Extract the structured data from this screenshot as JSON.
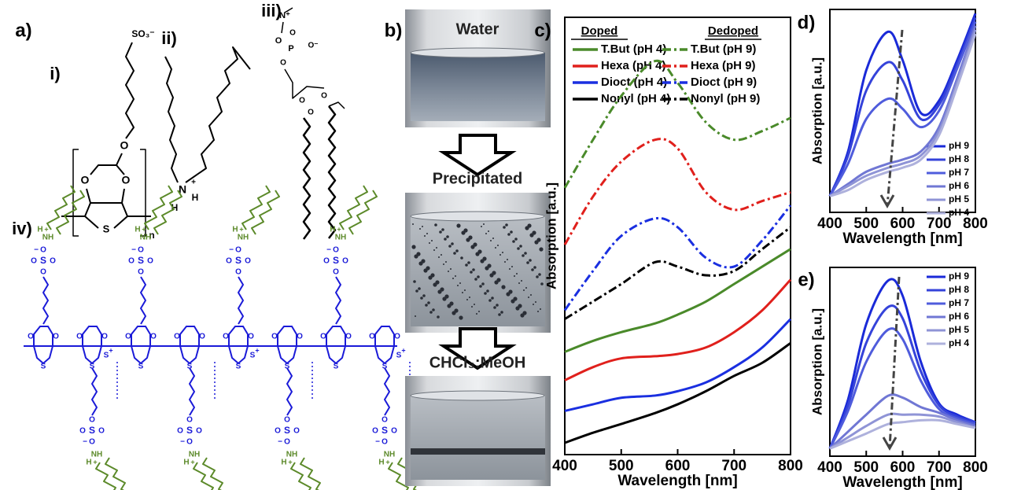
{
  "structures": {
    "label": "a)",
    "i": {
      "label": "i)",
      "atoms": [
        "SO₃⁻",
        "O",
        "O",
        "O",
        "S",
        "n"
      ]
    },
    "ii": {
      "label": "ii)",
      "atoms": [
        "N",
        "H",
        "H",
        "+"
      ]
    },
    "iii": {
      "label": "iii)",
      "atoms": [
        "N⁺",
        "O",
        "P",
        "O⁻",
        "O",
        "O",
        "O",
        "O",
        "O"
      ]
    },
    "iv": {
      "label": "iv)",
      "atoms": {
        "sulfur": "S",
        "oxygen": "O",
        "nitrogen": "NH",
        "hydrogen": "H",
        "plus": "+",
        "minus": "−"
      }
    }
  },
  "photos": {
    "label": "b)",
    "stages": [
      "Water",
      "Precipitated",
      "CHCl₃:MeOH"
    ]
  },
  "chart_data": [
    {
      "type": "line",
      "panel_label": "c)",
      "x_label": "Wavelength [nm]",
      "y_label": "Absorption [a.u.]",
      "legend_headers": [
        "Doped",
        "Dedoped"
      ],
      "x": [
        400,
        450,
        500,
        560,
        600,
        650,
        700,
        750,
        800
      ],
      "xlim": [
        400,
        800
      ],
      "xticks": [
        400,
        500,
        600,
        700,
        800
      ],
      "ylim": [
        0,
        10
      ],
      "series": [
        {
          "name": "T.But (pH 4)",
          "color": "#4a8a2a",
          "dash": "solid",
          "values": [
            2.35,
            2.6,
            2.8,
            3.0,
            3.2,
            3.5,
            3.9,
            4.3,
            4.7
          ]
        },
        {
          "name": "Hexa (pH 4)",
          "color": "#e0201c",
          "dash": "solid",
          "values": [
            1.7,
            2.0,
            2.2,
            2.25,
            2.3,
            2.45,
            2.8,
            3.3,
            4.0
          ]
        },
        {
          "name": "Dioct (pH 4)",
          "color": "#1a2fe0",
          "dash": "solid",
          "values": [
            1.0,
            1.15,
            1.3,
            1.35,
            1.45,
            1.65,
            2.0,
            2.45,
            3.1
          ]
        },
        {
          "name": "Nonyl (pH 4)",
          "color": "#000000",
          "dash": "solid",
          "values": [
            0.27,
            0.5,
            0.7,
            0.95,
            1.15,
            1.45,
            1.8,
            2.1,
            2.55
          ]
        },
        {
          "name": "T.But (pH 9)",
          "color": "#4a8a2a",
          "dash": "dashdot",
          "values": [
            6.1,
            7.2,
            8.2,
            9.0,
            8.5,
            7.6,
            7.2,
            7.4,
            7.7
          ]
        },
        {
          "name": "Hexa (pH 9)",
          "color": "#e0201c",
          "dash": "dashdot",
          "values": [
            4.8,
            5.9,
            6.7,
            7.2,
            7.0,
            6.0,
            5.6,
            5.8,
            6.0
          ]
        },
        {
          "name": "Dioct (pH 9)",
          "color": "#1a2fe0",
          "dash": "dashdot",
          "values": [
            3.3,
            4.2,
            5.0,
            5.4,
            5.2,
            4.5,
            4.3,
            4.9,
            5.7
          ]
        },
        {
          "name": "Nonyl (pH 9)",
          "color": "#000000",
          "dash": "dashdot",
          "values": [
            3.1,
            3.5,
            3.9,
            4.4,
            4.3,
            4.1,
            4.2,
            4.7,
            5.2
          ]
        }
      ]
    },
    {
      "type": "line",
      "panel_label": "d)",
      "x_label": "Wavelength [nm]",
      "y_label": "Absorption [a.u.]",
      "x": [
        400,
        450,
        500,
        560,
        600,
        650,
        700,
        750,
        800
      ],
      "xlim": [
        400,
        800
      ],
      "xticks": [
        400,
        500,
        600,
        700,
        800
      ],
      "ylim": [
        0,
        10
      ],
      "series": [
        {
          "name": "pH 9",
          "color": "#1a2ad8",
          "dash": "solid",
          "values": [
            0.8,
            3.0,
            7.0,
            8.9,
            7.5,
            4.9,
            5.5,
            7.5,
            9.8
          ]
        },
        {
          "name": "pH 8",
          "color": "#3543da",
          "dash": "solid",
          "values": [
            0.8,
            2.8,
            6.0,
            7.4,
            6.5,
            4.6,
            5.3,
            7.3,
            9.6
          ]
        },
        {
          "name": "pH 7",
          "color": "#4f5cdc",
          "dash": "solid",
          "values": [
            0.8,
            2.4,
            4.6,
            5.6,
            5.1,
            4.2,
            5.0,
            7.1,
            9.4
          ]
        },
        {
          "name": "pH 6",
          "color": "#7077d4",
          "dash": "solid",
          "values": [
            0.8,
            1.4,
            2.0,
            2.4,
            2.6,
            3.0,
            4.2,
            6.6,
            9.2
          ]
        },
        {
          "name": "pH 5",
          "color": "#8f94d6",
          "dash": "solid",
          "values": [
            0.8,
            1.3,
            1.8,
            2.2,
            2.4,
            2.8,
            4.0,
            6.4,
            9.0
          ]
        },
        {
          "name": "pH 4",
          "color": "#aeb1dc",
          "dash": "solid",
          "values": [
            0.8,
            1.1,
            1.6,
            2.0,
            2.2,
            2.6,
            3.8,
            6.2,
            8.8
          ]
        }
      ]
    },
    {
      "type": "line",
      "panel_label": "e)",
      "x_label": "Wavelength [nm]",
      "y_label": "Absorption [a.u.]",
      "x": [
        400,
        450,
        500,
        560,
        600,
        650,
        700,
        750,
        800
      ],
      "xlim": [
        400,
        800
      ],
      "xticks": [
        400,
        500,
        600,
        700,
        800
      ],
      "ylim": [
        0,
        10
      ],
      "series": [
        {
          "name": "pH 9",
          "color": "#1a2ad8",
          "dash": "solid",
          "values": [
            0.4,
            3.0,
            7.0,
            9.3,
            8.5,
            5.0,
            2.8,
            2.2,
            1.8
          ]
        },
        {
          "name": "pH 8",
          "color": "#3543da",
          "dash": "solid",
          "values": [
            0.4,
            2.7,
            6.0,
            7.9,
            7.3,
            4.5,
            2.7,
            2.1,
            1.8
          ]
        },
        {
          "name": "pH 7",
          "color": "#4f5cdc",
          "dash": "solid",
          "values": [
            0.4,
            2.4,
            5.0,
            6.7,
            6.2,
            4.0,
            2.5,
            2.0,
            1.7
          ]
        },
        {
          "name": "pH 6",
          "color": "#7077d4",
          "dash": "solid",
          "values": [
            0.4,
            1.3,
            2.2,
            3.2,
            3.1,
            2.6,
            2.3,
            1.9,
            1.6
          ]
        },
        {
          "name": "pH 5",
          "color": "#8f94d6",
          "dash": "solid",
          "values": [
            0.4,
            1.0,
            1.6,
            2.2,
            2.2,
            2.2,
            2.1,
            1.8,
            1.5
          ]
        },
        {
          "name": "pH 4",
          "color": "#aeb1dc",
          "dash": "solid",
          "values": [
            0.4,
            0.8,
            1.2,
            1.7,
            1.8,
            1.9,
            1.9,
            1.7,
            1.5
          ]
        }
      ]
    }
  ]
}
